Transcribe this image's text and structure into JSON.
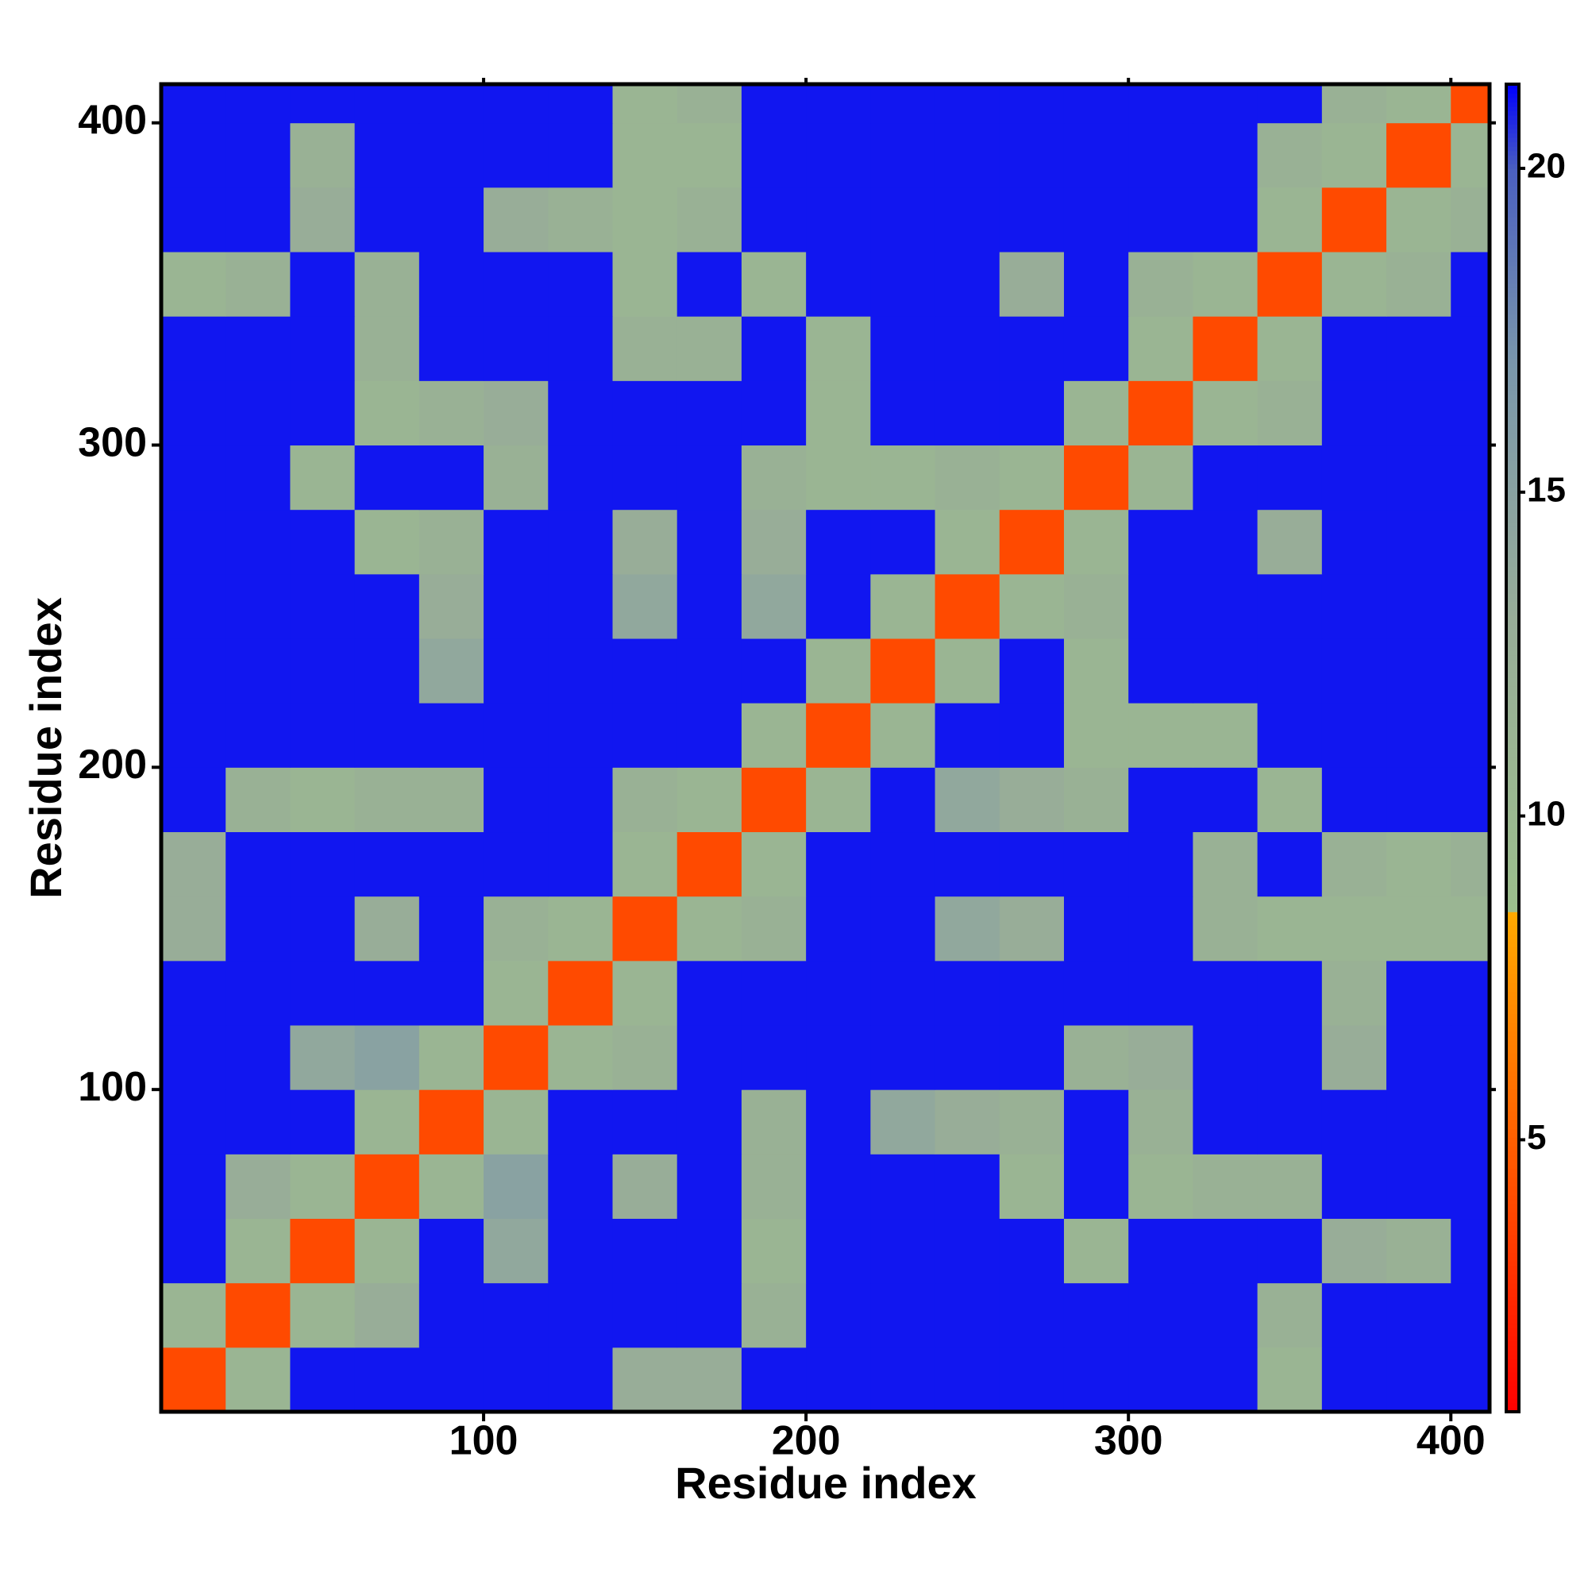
{
  "chart_data": {
    "type": "heatmap",
    "xlabel": "Residue index",
    "ylabel": "Residue index",
    "x": [
      10,
      30,
      50,
      70,
      90,
      110,
      130,
      150,
      170,
      190,
      210,
      230,
      250,
      270,
      290,
      310,
      330,
      350,
      370,
      390,
      410
    ],
    "y": [
      10,
      30,
      50,
      70,
      90,
      110,
      130,
      150,
      170,
      190,
      210,
      230,
      250,
      270,
      290,
      310,
      330,
      350,
      370,
      390,
      410
    ],
    "values": [
      [
        4,
        11,
        21,
        21,
        21,
        21,
        21,
        13,
        13,
        21,
        21,
        21,
        21,
        21,
        21,
        21,
        21,
        11,
        21,
        21,
        21
      ],
      [
        11,
        4,
        11,
        13,
        21,
        21,
        21,
        21,
        21,
        12,
        21,
        21,
        21,
        21,
        21,
        21,
        21,
        12,
        21,
        21,
        21
      ],
      [
        21,
        11,
        4,
        11,
        21,
        14,
        21,
        21,
        21,
        11,
        21,
        21,
        21,
        21,
        11,
        21,
        21,
        21,
        13,
        12,
        21
      ],
      [
        21,
        13,
        11,
        4,
        11,
        15,
        21,
        13,
        21,
        12,
        21,
        21,
        21,
        11,
        21,
        11,
        12,
        12,
        21,
        21,
        21
      ],
      [
        21,
        21,
        21,
        11,
        4,
        11,
        21,
        21,
        21,
        12,
        21,
        14,
        13,
        12,
        21,
        12,
        21,
        21,
        21,
        21,
        21
      ],
      [
        21,
        21,
        14,
        15,
        11,
        4,
        11,
        12,
        21,
        21,
        21,
        21,
        21,
        21,
        12,
        13,
        21,
        21,
        13,
        21,
        21
      ],
      [
        21,
        21,
        21,
        21,
        21,
        11,
        4,
        11,
        21,
        21,
        21,
        21,
        21,
        21,
        21,
        21,
        21,
        21,
        12,
        21,
        21
      ],
      [
        13,
        21,
        21,
        13,
        21,
        12,
        11,
        4,
        11,
        12,
        21,
        21,
        14,
        13,
        21,
        21,
        12,
        11,
        11,
        11,
        11
      ],
      [
        13,
        21,
        21,
        21,
        21,
        21,
        21,
        11,
        4,
        11,
        21,
        21,
        21,
        21,
        21,
        21,
        12,
        21,
        12,
        11,
        12
      ],
      [
        21,
        12,
        11,
        12,
        12,
        21,
        21,
        12,
        11,
        4,
        11,
        21,
        14,
        13,
        12,
        21,
        21,
        11,
        21,
        21,
        21
      ],
      [
        21,
        21,
        21,
        21,
        21,
        21,
        21,
        21,
        21,
        11,
        4,
        11,
        21,
        21,
        11,
        11,
        11,
        21,
        21,
        21,
        21
      ],
      [
        21,
        21,
        21,
        21,
        14,
        21,
        21,
        21,
        21,
        21,
        11,
        4,
        11,
        21,
        11,
        21,
        21,
        21,
        21,
        21,
        21
      ],
      [
        21,
        21,
        21,
        21,
        13,
        21,
        21,
        14,
        21,
        14,
        21,
        11,
        4,
        11,
        12,
        21,
        21,
        21,
        21,
        21,
        21
      ],
      [
        21,
        21,
        21,
        11,
        12,
        21,
        21,
        13,
        21,
        13,
        21,
        21,
        11,
        4,
        11,
        21,
        21,
        13,
        21,
        21,
        21
      ],
      [
        21,
        21,
        11,
        21,
        21,
        12,
        21,
        21,
        21,
        12,
        11,
        11,
        12,
        11,
        4,
        11,
        21,
        21,
        21,
        21,
        21
      ],
      [
        21,
        21,
        21,
        11,
        12,
        13,
        21,
        21,
        21,
        21,
        11,
        21,
        21,
        21,
        11,
        4,
        11,
        12,
        21,
        21,
        21
      ],
      [
        21,
        21,
        21,
        12,
        21,
        21,
        21,
        12,
        12,
        21,
        11,
        21,
        21,
        21,
        21,
        11,
        4,
        11,
        21,
        21,
        21
      ],
      [
        11,
        12,
        21,
        12,
        21,
        21,
        21,
        11,
        21,
        11,
        21,
        21,
        21,
        13,
        21,
        12,
        11,
        4,
        11,
        12,
        21
      ],
      [
        21,
        21,
        13,
        21,
        21,
        13,
        12,
        11,
        12,
        21,
        21,
        21,
        21,
        21,
        21,
        21,
        21,
        11,
        4,
        11,
        12
      ],
      [
        21,
        21,
        12,
        21,
        21,
        21,
        21,
        11,
        11,
        21,
        21,
        21,
        21,
        21,
        21,
        21,
        21,
        12,
        11,
        4,
        11
      ],
      [
        21,
        21,
        21,
        21,
        21,
        21,
        21,
        11,
        12,
        21,
        21,
        21,
        21,
        21,
        21,
        21,
        21,
        21,
        12,
        11,
        4
      ]
    ],
    "xlim": [
      0,
      412
    ],
    "ylim": [
      0,
      412
    ],
    "xticks": [
      100,
      200,
      300,
      400
    ],
    "yticks": [
      100,
      200,
      300,
      400
    ],
    "zlim": [
      0.8,
      21.3
    ],
    "zticks": [
      5,
      10,
      15,
      20
    ],
    "colorscale": [
      [
        0.8,
        "#ff0000"
      ],
      [
        4,
        "#ff4a00"
      ],
      [
        8.5,
        "#ffaa00"
      ],
      [
        8.5,
        "#9cbf8c"
      ],
      [
        13,
        "#98ad98"
      ],
      [
        17,
        "#7a97ab"
      ],
      [
        20,
        "#4a5fc0"
      ],
      [
        21.3,
        "#0000ff"
      ]
    ]
  }
}
